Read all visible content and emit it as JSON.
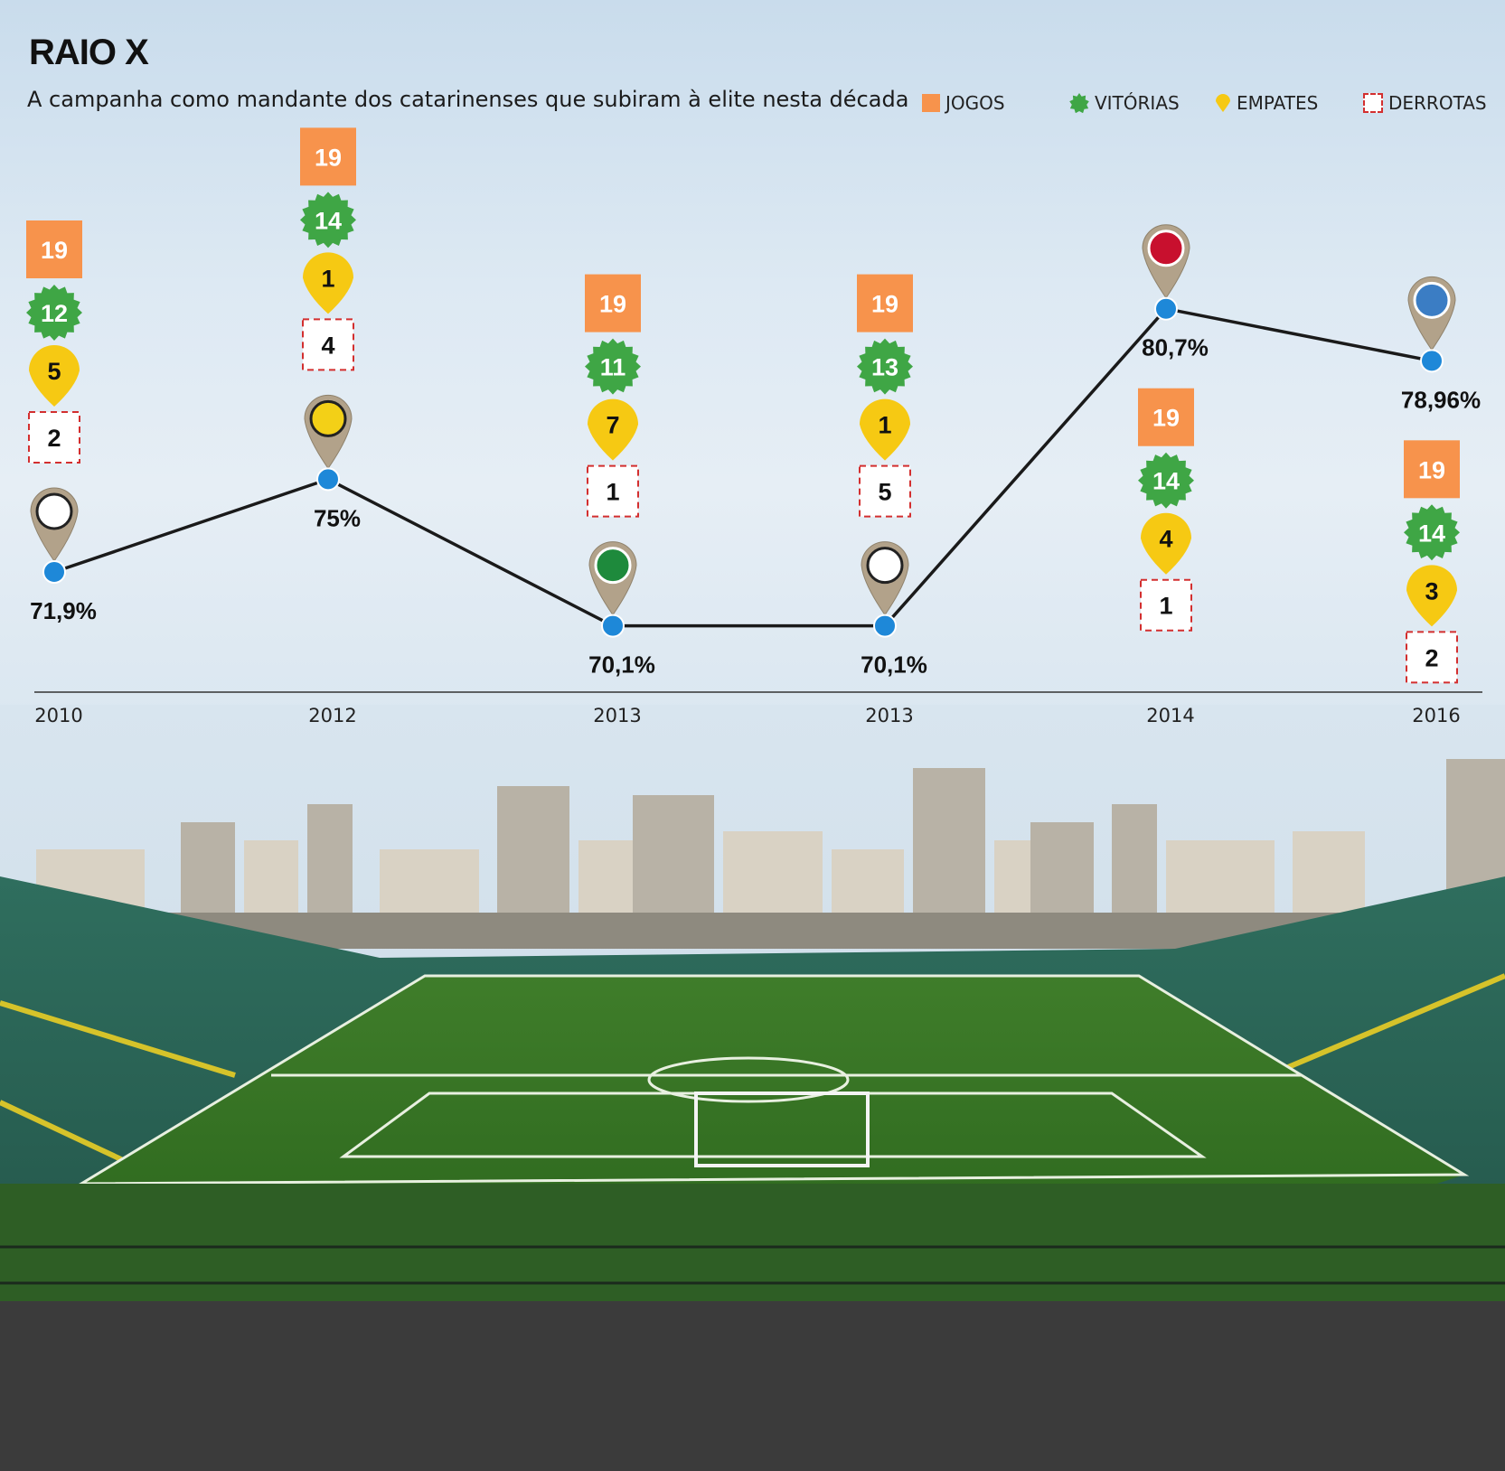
{
  "title": "RAIO X",
  "subtitle": "A campanha como mandante dos catarinenses que subiram à elite nesta década",
  "colors": {
    "jogos": "#f7934c",
    "vitorias": "#3fa645",
    "empates": "#f6c913",
    "derrotas": "#d32f2f",
    "line": "#1a1a1a",
    "point": "#1e88d8",
    "pin": "#b2a28a"
  },
  "legend": [
    {
      "key": "jogos",
      "label": "JOGOS",
      "shape": "square"
    },
    {
      "key": "vitorias",
      "label": "VITÓRIAS",
      "shape": "star-badge"
    },
    {
      "key": "empates",
      "label": "EMPATES",
      "shape": "drop"
    },
    {
      "key": "derrotas",
      "label": "DERROTAS",
      "shape": "dashed-square"
    }
  ],
  "chart_data": {
    "type": "line",
    "x": [
      "2010",
      "2012",
      "2013",
      "2013",
      "2014",
      "2016"
    ],
    "ylim": [
      65,
      85
    ],
    "series": [
      {
        "values": [
          71.9,
          75,
          70.1,
          70.1,
          80.7,
          78.96
        ]
      }
    ],
    "point_labels": [
      "71,9%",
      "75%",
      "70,1%",
      "70,1%",
      "80,7%",
      "78,96%"
    ],
    "stats": [
      {
        "jogos": "19",
        "vitorias": "12",
        "empates": "5",
        "derrotas": "2",
        "club_icon": "figueirense-crest-icon",
        "stack_position": "above"
      },
      {
        "jogos": "19",
        "vitorias": "14",
        "empates": "1",
        "derrotas": "4",
        "club_icon": "criciuma-crest-icon",
        "stack_position": "above"
      },
      {
        "jogos": "19",
        "vitorias": "11",
        "empates": "7",
        "derrotas": "1",
        "club_icon": "chapecoense-crest-icon",
        "stack_position": "above"
      },
      {
        "jogos": "19",
        "vitorias": "13",
        "empates": "1",
        "derrotas": "5",
        "club_icon": "figueirense-crest-icon",
        "stack_position": "above"
      },
      {
        "jogos": "19",
        "vitorias": "14",
        "empates": "4",
        "derrotas": "1",
        "club_icon": "joinville-crest-icon",
        "stack_position": "below"
      },
      {
        "jogos": "19",
        "vitorias": "14",
        "empates": "3",
        "derrotas": "2",
        "club_icon": "avai-crest-icon",
        "stack_position": "below"
      }
    ],
    "background_image": "stadium-photo"
  }
}
